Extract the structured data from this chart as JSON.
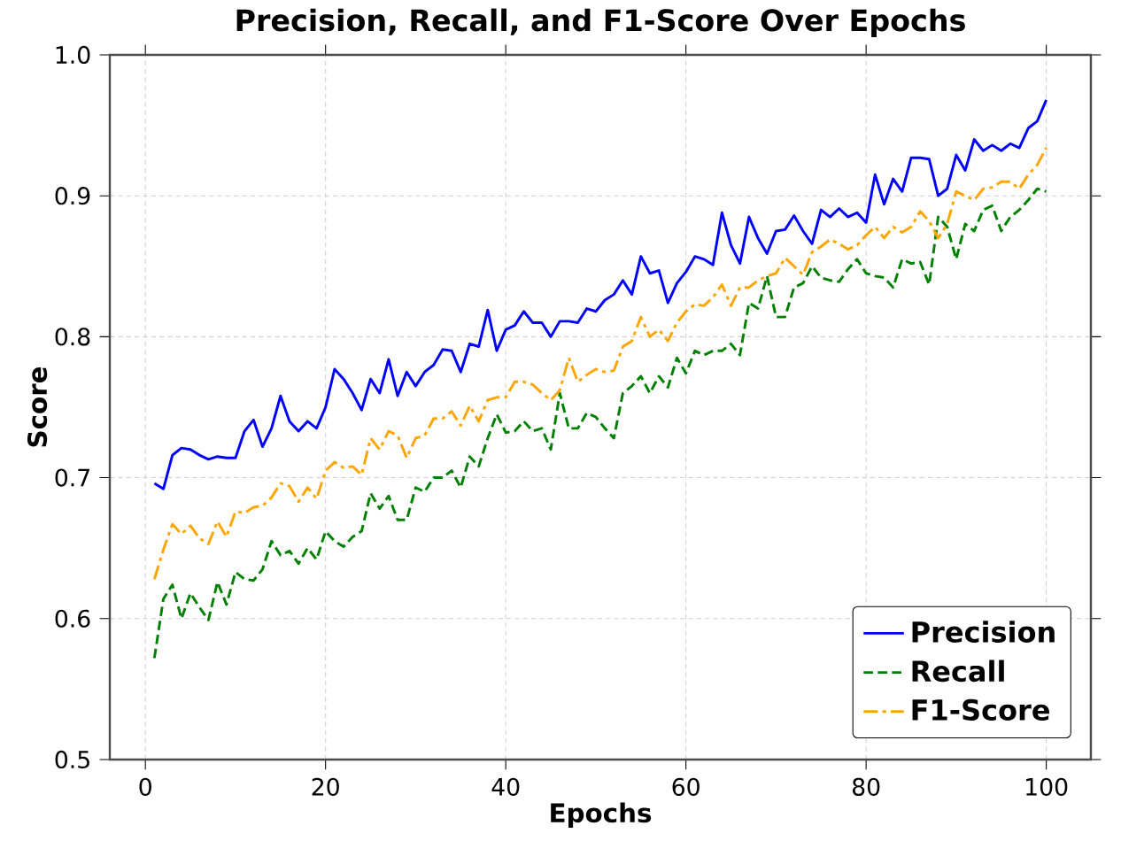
{
  "chart_data": {
    "type": "line",
    "title": "Precision, Recall, and F1-Score Over Epochs",
    "xlabel": "Epochs",
    "ylabel": "Score",
    "x": [
      1,
      2,
      3,
      4,
      5,
      6,
      7,
      8,
      9,
      10,
      11,
      12,
      13,
      14,
      15,
      16,
      17,
      18,
      19,
      20,
      21,
      22,
      23,
      24,
      25,
      26,
      27,
      28,
      29,
      30,
      31,
      32,
      33,
      34,
      35,
      36,
      37,
      38,
      39,
      40,
      41,
      42,
      43,
      44,
      45,
      46,
      47,
      48,
      49,
      50,
      51,
      52,
      53,
      54,
      55,
      56,
      57,
      58,
      59,
      60,
      61,
      62,
      63,
      64,
      65,
      66,
      67,
      68,
      69,
      70,
      71,
      72,
      73,
      74,
      75,
      76,
      77,
      78,
      79,
      80,
      81,
      82,
      83,
      84,
      85,
      86,
      87,
      88,
      89,
      90,
      91,
      92,
      93,
      94,
      95,
      96,
      97,
      98,
      99,
      100
    ],
    "series": [
      {
        "name": "Precision",
        "color": "#0000ff",
        "line_style": "solid",
        "values": [
          0.696,
          0.692,
          0.716,
          0.721,
          0.72,
          0.716,
          0.713,
          0.715,
          0.714,
          0.714,
          0.733,
          0.741,
          0.722,
          0.735,
          0.758,
          0.74,
          0.733,
          0.74,
          0.735,
          0.75,
          0.777,
          0.77,
          0.76,
          0.748,
          0.77,
          0.76,
          0.784,
          0.758,
          0.775,
          0.765,
          0.775,
          0.78,
          0.791,
          0.79,
          0.775,
          0.795,
          0.793,
          0.819,
          0.79,
          0.805,
          0.808,
          0.818,
          0.81,
          0.81,
          0.8,
          0.811,
          0.811,
          0.81,
          0.82,
          0.818,
          0.826,
          0.83,
          0.84,
          0.83,
          0.857,
          0.845,
          0.847,
          0.824,
          0.838,
          0.846,
          0.857,
          0.855,
          0.851,
          0.888,
          0.865,
          0.852,
          0.885,
          0.87,
          0.859,
          0.875,
          0.876,
          0.886,
          0.875,
          0.866,
          0.89,
          0.885,
          0.891,
          0.885,
          0.888,
          0.881,
          0.915,
          0.894,
          0.912,
          0.903,
          0.927,
          0.927,
          0.926,
          0.9,
          0.905,
          0.929,
          0.918,
          0.94,
          0.932,
          0.936,
          0.932,
          0.937,
          0.934,
          0.948,
          0.953,
          0.968
        ]
      },
      {
        "name": "Recall",
        "color": "#008000",
        "line_style": "dashed",
        "values": [
          0.572,
          0.614,
          0.624,
          0.6,
          0.618,
          0.608,
          0.599,
          0.626,
          0.61,
          0.633,
          0.628,
          0.627,
          0.635,
          0.655,
          0.645,
          0.648,
          0.639,
          0.65,
          0.642,
          0.662,
          0.655,
          0.651,
          0.658,
          0.662,
          0.689,
          0.678,
          0.687,
          0.67,
          0.67,
          0.693,
          0.69,
          0.7,
          0.7,
          0.705,
          0.693,
          0.715,
          0.708,
          0.728,
          0.745,
          0.732,
          0.733,
          0.74,
          0.733,
          0.735,
          0.72,
          0.76,
          0.735,
          0.735,
          0.746,
          0.743,
          0.735,
          0.728,
          0.76,
          0.765,
          0.772,
          0.76,
          0.772,
          0.764,
          0.785,
          0.774,
          0.79,
          0.787,
          0.79,
          0.79,
          0.795,
          0.787,
          0.824,
          0.82,
          0.843,
          0.814,
          0.814,
          0.835,
          0.838,
          0.85,
          0.842,
          0.84,
          0.839,
          0.848,
          0.855,
          0.845,
          0.843,
          0.842,
          0.835,
          0.855,
          0.852,
          0.853,
          0.837,
          0.885,
          0.878,
          0.855,
          0.88,
          0.875,
          0.89,
          0.893,
          0.875,
          0.885,
          0.89,
          0.897,
          0.905,
          0.903
        ]
      },
      {
        "name": "F1-Score",
        "color": "#ffa500",
        "line_style": "dashdot",
        "values": [
          0.628,
          0.649,
          0.667,
          0.66,
          0.666,
          0.657,
          0.653,
          0.669,
          0.658,
          0.676,
          0.675,
          0.679,
          0.68,
          0.686,
          0.696,
          0.694,
          0.683,
          0.693,
          0.685,
          0.705,
          0.711,
          0.707,
          0.708,
          0.702,
          0.728,
          0.72,
          0.733,
          0.73,
          0.714,
          0.728,
          0.73,
          0.742,
          0.742,
          0.747,
          0.737,
          0.751,
          0.74,
          0.755,
          0.757,
          0.757,
          0.768,
          0.768,
          0.766,
          0.76,
          0.755,
          0.762,
          0.785,
          0.768,
          0.773,
          0.777,
          0.775,
          0.776,
          0.793,
          0.797,
          0.814,
          0.8,
          0.805,
          0.797,
          0.81,
          0.818,
          0.823,
          0.822,
          0.828,
          0.837,
          0.822,
          0.835,
          0.835,
          0.84,
          0.843,
          0.845,
          0.856,
          0.85,
          0.844,
          0.86,
          0.864,
          0.869,
          0.866,
          0.862,
          0.865,
          0.872,
          0.878,
          0.87,
          0.878,
          0.874,
          0.878,
          0.889,
          0.882,
          0.87,
          0.88,
          0.903,
          0.9,
          0.897,
          0.905,
          0.906,
          0.91,
          0.91,
          0.905,
          0.915,
          0.922,
          0.934
        ]
      }
    ],
    "xlim": [
      -3.95,
      104.95
    ],
    "ylim": [
      0.5,
      1.0
    ],
    "xticks": [
      0,
      20,
      40,
      60,
      80,
      100
    ],
    "yticks": [
      {
        "value": 0.5,
        "label": "0.5"
      },
      {
        "value": 0.6,
        "label": "0.6"
      },
      {
        "value": 0.7,
        "label": "0.7"
      },
      {
        "value": 0.8,
        "label": "0.8"
      },
      {
        "value": 0.9,
        "label": "0.9"
      },
      {
        "value": 1.0,
        "label": "1.0"
      }
    ],
    "grid": true,
    "legend": "bottom right",
    "marker": "none"
  }
}
